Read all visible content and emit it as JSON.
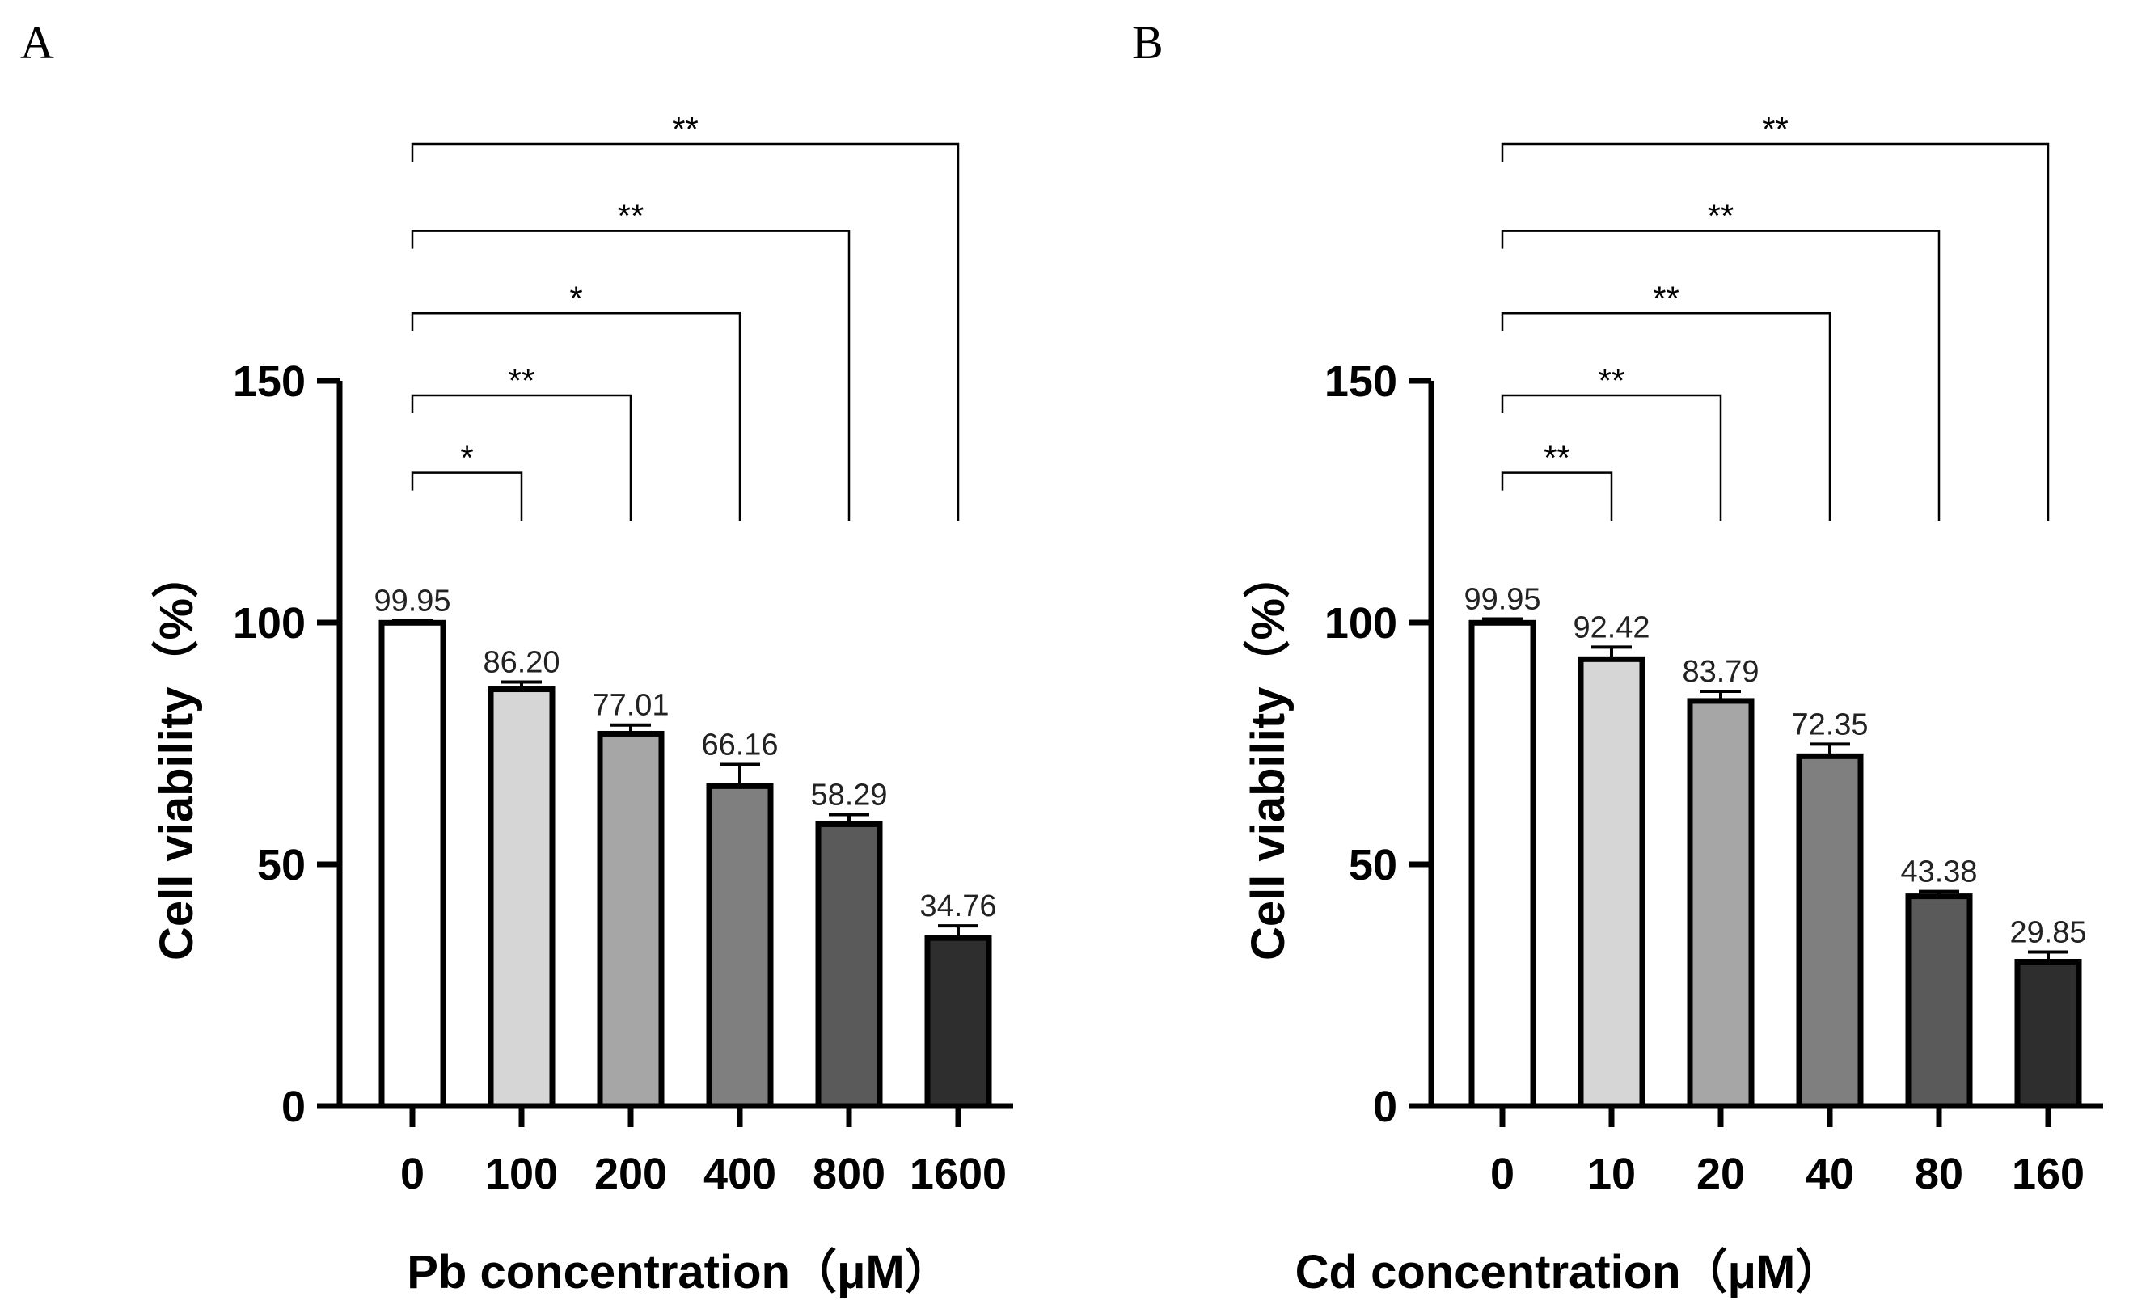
{
  "chart_data": [
    {
      "panel": "A",
      "type": "bar",
      "categories": [
        "0",
        "100",
        "200",
        "400",
        "800",
        "1600"
      ],
      "values": [
        99.95,
        86.2,
        77.01,
        66.16,
        58.29,
        34.76
      ],
      "value_labels": [
        "99.95",
        "86.20",
        "77.01",
        "66.16",
        "58.29",
        "34.76"
      ],
      "errors": [
        0.5,
        1.5,
        1.8,
        4.5,
        2.0,
        2.5
      ],
      "bar_colors": [
        "#ffffff",
        "#d6d6d6",
        "#a6a6a6",
        "#7f7f7f",
        "#5a5a5a",
        "#2e2e2e"
      ],
      "xlabel": "Pb concentration（μM）",
      "ylabel": "Cell viability（%）",
      "ylim": [
        0,
        150
      ],
      "yticks": [
        0,
        50,
        100,
        150
      ],
      "significance": [
        {
          "from": "0",
          "to": "100",
          "label": "*",
          "bracket_y": 131
        },
        {
          "from": "0",
          "to": "200",
          "label": "**",
          "bracket_y": 147
        },
        {
          "from": "0",
          "to": "400",
          "label": "*",
          "bracket_y": 164
        },
        {
          "from": "0",
          "to": "800",
          "label": "**",
          "bracket_y": 181
        },
        {
          "from": "0",
          "to": "1600",
          "label": "**",
          "bracket_y": 199
        }
      ],
      "bracket_drop_y": 121
    },
    {
      "panel": "B",
      "type": "bar",
      "categories": [
        "0",
        "10",
        "20",
        "40",
        "80",
        "160"
      ],
      "values": [
        99.95,
        92.42,
        83.79,
        72.35,
        43.38,
        29.85
      ],
      "value_labels": [
        "99.95",
        "92.42",
        "83.79",
        "72.35",
        "43.38",
        "29.85"
      ],
      "errors": [
        0.8,
        2.5,
        2.0,
        2.5,
        1.0,
        2.0
      ],
      "bar_colors": [
        "#ffffff",
        "#d6d6d6",
        "#a6a6a6",
        "#7f7f7f",
        "#5a5a5a",
        "#2e2e2e"
      ],
      "xlabel": "Cd concentration（μM）",
      "ylabel": "Cell viability（%）",
      "ylim": [
        0,
        150
      ],
      "yticks": [
        0,
        50,
        100,
        150
      ],
      "significance": [
        {
          "from": "0",
          "to": "10",
          "label": "**",
          "bracket_y": 131
        },
        {
          "from": "0",
          "to": "20",
          "label": "**",
          "bracket_y": 147
        },
        {
          "from": "0",
          "to": "40",
          "label": "**",
          "bracket_y": 164
        },
        {
          "from": "0",
          "to": "80",
          "label": "**",
          "bracket_y": 181
        },
        {
          "from": "0",
          "to": "160",
          "label": "**",
          "bracket_y": 199
        }
      ],
      "bracket_drop_y": 121
    }
  ]
}
